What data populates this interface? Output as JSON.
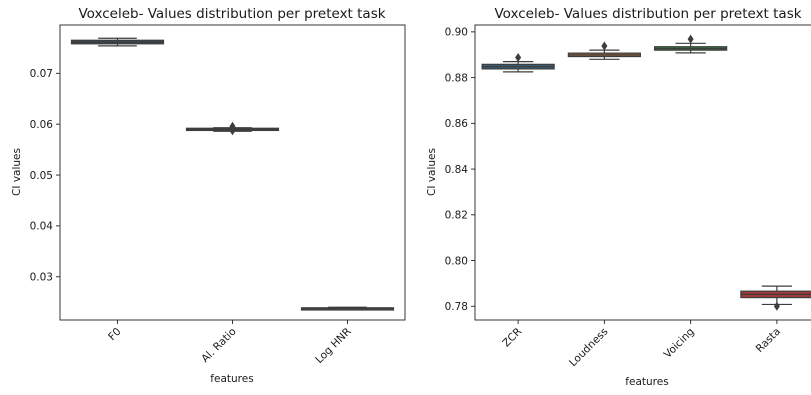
{
  "chart_data": [
    {
      "type": "box",
      "title": "Voxceleb- Values distribution per pretext task",
      "xlabel": "features",
      "ylabel": "CI values",
      "ylim": [
        0.0215,
        0.0795
      ],
      "yticks": [
        0.03,
        0.04,
        0.05,
        0.06,
        0.07
      ],
      "ytick_labels": [
        "0.03",
        "0.04",
        "0.05",
        "0.06",
        "0.07"
      ],
      "categories": [
        "F0",
        "Al. Ratio",
        "Log HNR"
      ],
      "boxes": [
        {
          "category": "F0",
          "whisker_low": 0.0754,
          "q1": 0.0758,
          "median": 0.0761,
          "q3": 0.0765,
          "whisker_high": 0.0769,
          "outliers": [],
          "color": "#3b4a57"
        },
        {
          "category": "Al. Ratio",
          "whisker_low": 0.0586,
          "q1": 0.0588,
          "median": 0.059,
          "q3": 0.0592,
          "whisker_high": 0.0593,
          "outliers": [
            0.0587,
            0.0596
          ],
          "color": "#5a4030"
        },
        {
          "category": "Log HNR",
          "whisker_low": 0.0236,
          "q1": 0.0237,
          "median": 0.0238,
          "q3": 0.0239,
          "whisker_high": 0.024,
          "outliers": [],
          "color": "#3c5232"
        }
      ],
      "grid": false
    },
    {
      "type": "box",
      "title": "Voxceleb- Values distribution per pretext task",
      "xlabel": "features",
      "ylabel": "CI values",
      "ylim": [
        0.774,
        0.903
      ],
      "yticks": [
        0.78,
        0.8,
        0.82,
        0.84,
        0.86,
        0.88,
        0.9
      ],
      "ytick_labels": [
        "0.78",
        "0.80",
        "0.82",
        "0.84",
        "0.86",
        "0.88",
        "0.90"
      ],
      "categories": [
        "ZCR",
        "Loudness",
        "Voicing",
        "Rasta"
      ],
      "boxes": [
        {
          "category": "ZCR",
          "whisker_low": 0.8825,
          "q1": 0.8838,
          "median": 0.8848,
          "q3": 0.8858,
          "whisker_high": 0.887,
          "outliers": [
            0.8888
          ],
          "color": "#3a5f78"
        },
        {
          "category": "Loudness",
          "whisker_low": 0.888,
          "q1": 0.8892,
          "median": 0.8899,
          "q3": 0.8907,
          "whisker_high": 0.892,
          "outliers": [
            0.8938
          ],
          "color": "#b0773c"
        },
        {
          "category": "Voicing",
          "whisker_low": 0.8908,
          "q1": 0.892,
          "median": 0.8927,
          "q3": 0.8935,
          "whisker_high": 0.895,
          "outliers": [
            0.8968
          ],
          "color": "#3a7a3a"
        },
        {
          "category": "Rasta",
          "whisker_low": 0.7808,
          "q1": 0.7838,
          "median": 0.7852,
          "q3": 0.7866,
          "whisker_high": 0.7888,
          "outliers": [
            0.78
          ],
          "color": "#a23a3a"
        }
      ],
      "grid": false
    }
  ]
}
